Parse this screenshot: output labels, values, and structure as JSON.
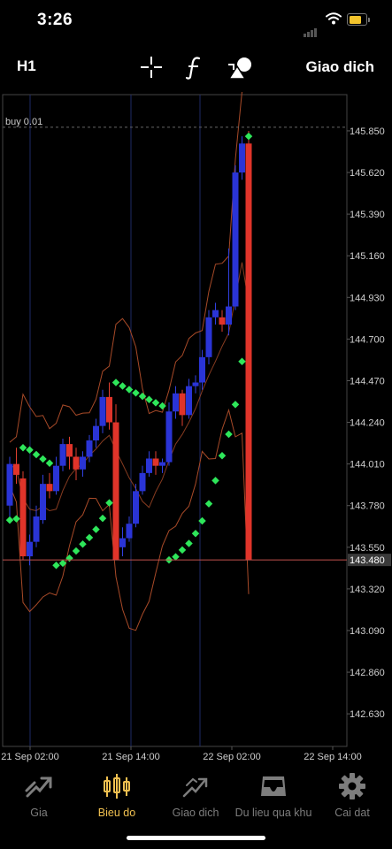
{
  "status_bar": {
    "time": "3:26"
  },
  "toolbar": {
    "timeframe": "H1",
    "trade_label": "Giao dich"
  },
  "chart": {
    "order_line_label": "buy 0.01",
    "current_price_label": "143.480"
  },
  "chart_data": {
    "type": "candlestick",
    "symbol_timeframe": "H1",
    "price_ticks": [
      "145.850",
      "145.620",
      "145.390",
      "145.160",
      "144.930",
      "144.700",
      "144.470",
      "144.240",
      "144.010",
      "143.780",
      "143.550",
      "143.320",
      "143.090",
      "142.860",
      "142.630"
    ],
    "time_ticks": [
      "21 Sep 02:00",
      "21 Sep 14:00",
      "22 Sep 02:00",
      "22 Sep 14:00"
    ],
    "ylim": [
      142.45,
      146.05
    ],
    "current_price": 143.48,
    "order_line": {
      "label": "buy 0.01",
      "price": 145.87
    },
    "up_color": "#2a34d6",
    "down_color": "#e0342a",
    "candles": [
      [
        143.78,
        144.01,
        143.7,
        144.05
      ],
      [
        144.01,
        143.95,
        143.9,
        144.1
      ],
      [
        143.93,
        143.5,
        143.48,
        143.97
      ],
      [
        143.5,
        143.58,
        143.45,
        143.62
      ],
      [
        143.58,
        143.72,
        143.55,
        143.78
      ],
      [
        143.7,
        143.9,
        143.68,
        143.95
      ],
      [
        143.9,
        143.86,
        143.82,
        143.96
      ],
      [
        143.86,
        144.0,
        143.84,
        144.05
      ],
      [
        144.0,
        144.12,
        143.97,
        144.15
      ],
      [
        144.12,
        144.05,
        143.98,
        144.16
      ],
      [
        144.05,
        143.98,
        143.92,
        144.1
      ],
      [
        143.98,
        144.05,
        143.94,
        144.08
      ],
      [
        144.05,
        144.14,
        144.02,
        144.17
      ],
      [
        144.14,
        144.22,
        144.1,
        144.26
      ],
      [
        144.22,
        144.38,
        144.18,
        144.42
      ],
      [
        144.38,
        144.24,
        144.2,
        144.46
      ],
      [
        144.24,
        143.48,
        143.48,
        144.34
      ],
      [
        143.55,
        143.6,
        143.5,
        143.66
      ],
      [
        143.6,
        143.68,
        143.58,
        143.72
      ],
      [
        143.68,
        143.86,
        143.66,
        143.9
      ],
      [
        143.86,
        143.96,
        143.84,
        144.0
      ],
      [
        143.96,
        144.04,
        143.94,
        144.08
      ],
      [
        144.04,
        144.0,
        143.95,
        144.08
      ],
      [
        144.0,
        144.02,
        143.96,
        144.04
      ],
      [
        144.02,
        144.3,
        144.0,
        144.35
      ],
      [
        144.3,
        144.4,
        144.26,
        144.44
      ],
      [
        144.4,
        144.28,
        144.22,
        144.42
      ],
      [
        144.28,
        144.44,
        144.26,
        144.48
      ],
      [
        144.44,
        144.46,
        144.4,
        144.5
      ],
      [
        144.46,
        144.6,
        144.42,
        144.64
      ],
      [
        144.6,
        144.82,
        144.56,
        144.86
      ],
      [
        144.82,
        144.86,
        144.78,
        144.9
      ],
      [
        144.82,
        144.78,
        144.74,
        144.86
      ],
      [
        144.78,
        144.88,
        144.72,
        145.2
      ],
      [
        144.88,
        145.62,
        144.86,
        145.66
      ],
      [
        145.62,
        145.78,
        145.58,
        145.82
      ],
      [
        145.78,
        143.48,
        143.48,
        145.85
      ]
    ],
    "indicators": [
      "Bollinger Bands",
      "Parabolic SAR"
    ]
  },
  "tabs": [
    {
      "label": "Gia",
      "icon": "trend-arrow-icon"
    },
    {
      "label": "Bieu do",
      "icon": "candlestick-icon"
    },
    {
      "label": "Giao dich",
      "icon": "trade-icon"
    },
    {
      "label": "Du lieu qua khu",
      "icon": "inbox-icon"
    },
    {
      "label": "Cai dat",
      "icon": "gear-icon"
    }
  ],
  "colors": {
    "accent": "#f0c050",
    "sar": "#2ee65a",
    "band": "#a84a28",
    "price_line": "#c0504d"
  }
}
